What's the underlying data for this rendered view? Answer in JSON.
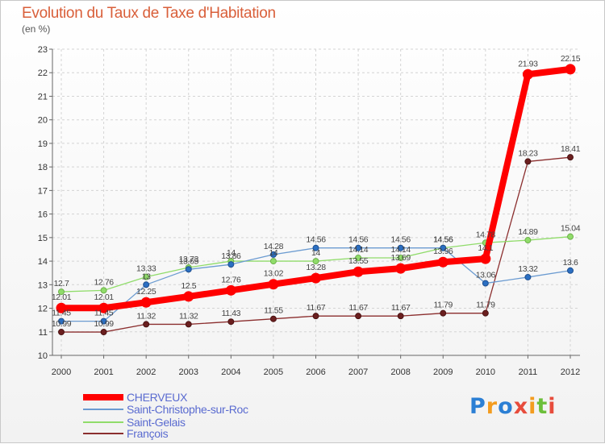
{
  "chart_data": {
    "type": "line",
    "title": "Evolution du Taux de Taxe d'Habitation",
    "ylabel": "(en %)",
    "xlabel": "",
    "ylim": [
      10,
      23
    ],
    "yticks": [
      "10",
      "11",
      "12",
      "13",
      "14",
      "15",
      "16",
      "17",
      "18",
      "19",
      "20",
      "21",
      "22",
      "23"
    ],
    "x": [
      "2000",
      "2001",
      "2002",
      "2003",
      "2004",
      "2005",
      "2006",
      "2007",
      "2008",
      "2009",
      "2010",
      "2011",
      "2012"
    ],
    "grid": true,
    "legend_position": "bottom-left",
    "series": [
      {
        "name": "CHERVEUX",
        "color": "#ff0000",
        "values": [
          12.01,
          12.01,
          12.25,
          12.5,
          12.76,
          13.02,
          13.28,
          13.55,
          13.69,
          13.96,
          14.1,
          21.93,
          22.15
        ],
        "labels": [
          "12.01",
          "12.01",
          "12.25",
          "12.5",
          "12.76",
          "13.02",
          "13.28",
          "13.55",
          "13.69",
          "13.96",
          "14.1",
          "21.93",
          "22.15"
        ]
      },
      {
        "name": "Saint-Christophe-sur-Roc",
        "color": "#6b9bd1",
        "values": [
          11.45,
          11.45,
          13,
          13.65,
          13.86,
          14.28,
          14.56,
          14.56,
          14.56,
          14.56,
          13.06,
          13.32,
          13.6
        ],
        "labels": [
          "11.45",
          "11.45",
          "13",
          "13.65",
          "13.86",
          "14.28",
          "14.56",
          "14.56",
          "14.56",
          "14.56",
          "13.06",
          "13.32",
          "13.6"
        ]
      },
      {
        "name": "Saint-Gelais",
        "color": "#90dc6a",
        "values": [
          12.7,
          12.76,
          13.33,
          13.73,
          14,
          14,
          14,
          14.14,
          14.14,
          14.56,
          14.78,
          14.89,
          15.04
        ],
        "labels": [
          "12.7",
          "12.76",
          "13.33",
          "13.73",
          "14",
          "14",
          "14",
          "14.14",
          "14.14",
          "14.56",
          "14.78",
          "14.89",
          "15.04"
        ]
      },
      {
        "name": "François",
        "color": "#8b2e2e",
        "values": [
          10.99,
          10.99,
          11.32,
          11.32,
          11.43,
          11.55,
          11.67,
          11.67,
          11.67,
          11.79,
          11.79,
          18.23,
          18.41
        ],
        "labels": [
          "10.99",
          "10.99",
          "11.32",
          "11.32",
          "11.43",
          "11.55",
          "11.67",
          "11.67",
          "11.67",
          "11.79",
          "11.79",
          "18.23",
          "18.41"
        ]
      }
    ]
  },
  "logo": {
    "text": "Proxiti",
    "colors": [
      "#2b7fd4",
      "#f39c1f",
      "#2b7fd4",
      "#e74c3c",
      "#f39c1f",
      "#6cbf3a",
      "#e74c3c"
    ]
  }
}
